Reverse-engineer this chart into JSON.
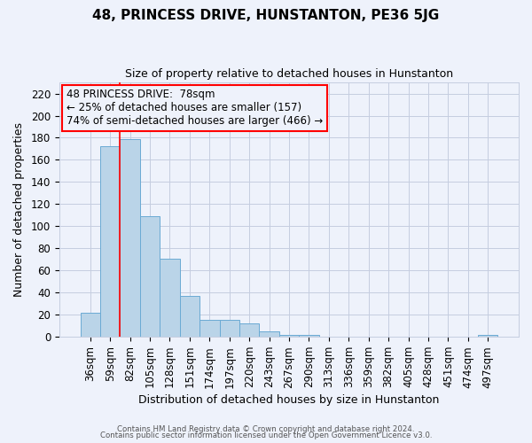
{
  "title": "48, PRINCESS DRIVE, HUNSTANTON, PE36 5JG",
  "subtitle": "Size of property relative to detached houses in Hunstanton",
  "xlabel": "Distribution of detached houses by size in Hunstanton",
  "ylabel": "Number of detached properties",
  "categories": [
    "36sqm",
    "59sqm",
    "82sqm",
    "105sqm",
    "128sqm",
    "151sqm",
    "174sqm",
    "197sqm",
    "220sqm",
    "243sqm",
    "267sqm",
    "290sqm",
    "313sqm",
    "336sqm",
    "359sqm",
    "382sqm",
    "405sqm",
    "428sqm",
    "451sqm",
    "474sqm",
    "497sqm"
  ],
  "values": [
    22,
    172,
    179,
    109,
    71,
    37,
    15,
    15,
    12,
    5,
    2,
    2,
    0,
    0,
    0,
    0,
    0,
    0,
    0,
    0,
    2
  ],
  "bar_color": "#bad4e8",
  "bar_edge_color": "#6aaad4",
  "red_line_x": 2.0,
  "ylim": [
    0,
    230
  ],
  "yticks": [
    0,
    20,
    40,
    60,
    80,
    100,
    120,
    140,
    160,
    180,
    200,
    220
  ],
  "annotation_title": "48 PRINCESS DRIVE:  78sqm",
  "annotation_line1": "← 25% of detached houses are smaller (157)",
  "annotation_line2": "74% of semi-detached houses are larger (466) →",
  "footer1": "Contains HM Land Registry data © Crown copyright and database right 2024.",
  "footer2": "Contains public sector information licensed under the Open Government Licence v3.0.",
  "background_color": "#eef2fb",
  "plot_bg_color": "#eef2fb",
  "grid_color": "#c5cde0",
  "title_fontsize": 11,
  "subtitle_fontsize": 9,
  "xlabel_fontsize": 9,
  "ylabel_fontsize": 9,
  "tick_fontsize": 8.5,
  "annotation_fontsize": 8.5
}
